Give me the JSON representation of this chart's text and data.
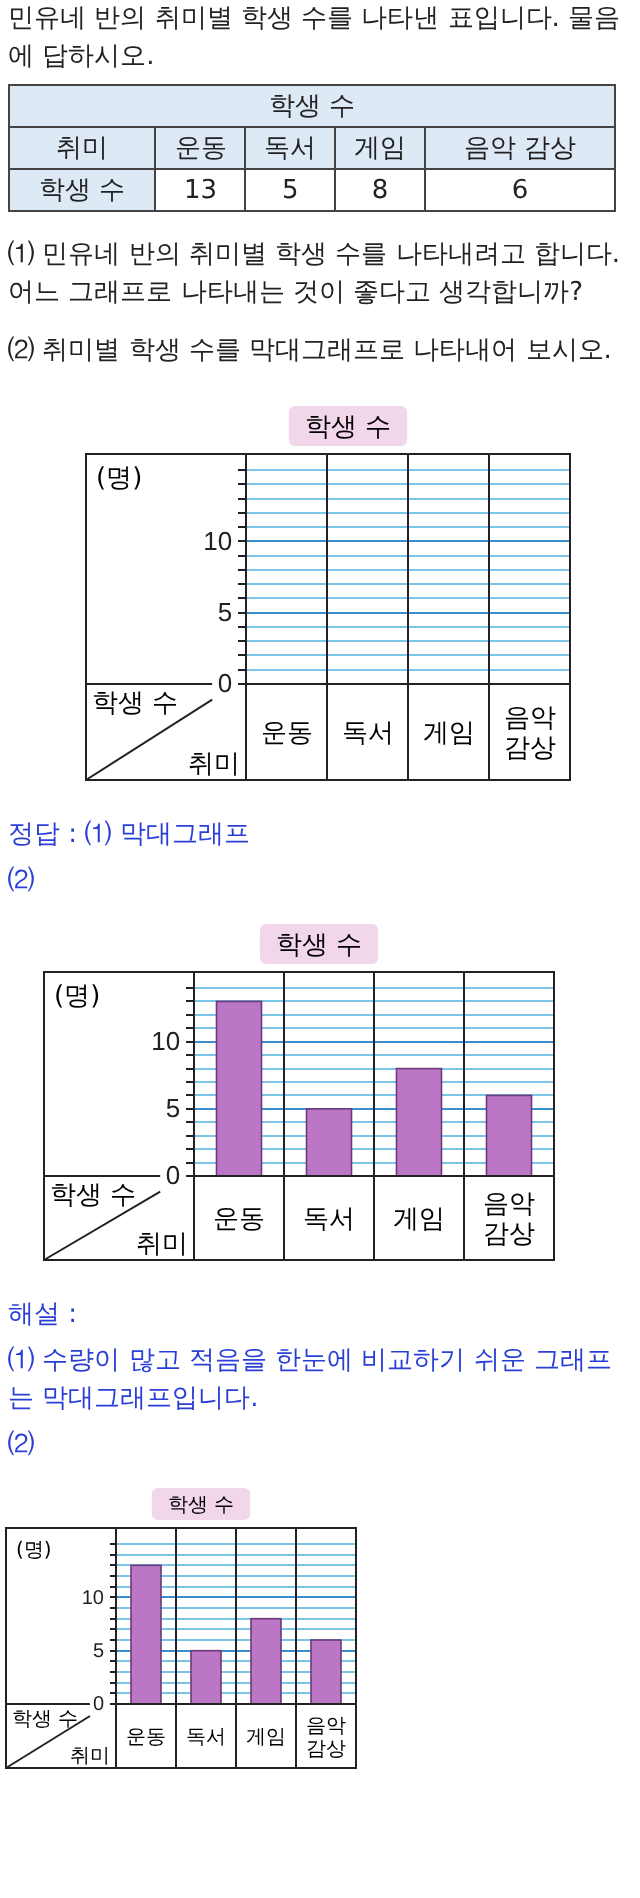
{
  "chart_data": [
    {
      "type": "other",
      "annotations": [
        "민유네 반의 취미별 학생 수를 나타낸 표입니다. 물음에 답하시오.",
        "⑴ 민유네 반의 취미별 학생 수를 나타내려고 합니다. 어느 그래프로 나타내는 것이 좋다고 생각합니까?",
        "⑵ 취미별 학생 수를 막대그래프로 나타내어 보시오."
      ],
      "title": "학생 수",
      "xlabel": "취미",
      "ylabel": "학생 수",
      "categories": [
        "운동",
        "독서",
        "게임",
        "음악 감상"
      ],
      "values": [
        13,
        5,
        8,
        6
      ],
      "data_labels": true
    },
    {
      "type": "bar",
      "title": "학생 수",
      "ylabel": "(명)",
      "xlabel": "취미",
      "annotations": [
        "학생 수"
      ],
      "categories": [
        "운동",
        "독서",
        "게임",
        "음악\n감상"
      ],
      "values": [
        null,
        null,
        null,
        null
      ],
      "ylim": [
        0,
        15
      ],
      "yticks": [
        0,
        {
          "value": 1,
          "label": null
        },
        {
          "value": 2,
          "label": null
        },
        {
          "value": 3,
          "label": null
        },
        {
          "value": 4,
          "label": null
        },
        5,
        {
          "value": 6,
          "label": null
        },
        {
          "value": 7,
          "label": null
        },
        {
          "value": 8,
          "label": null
        },
        {
          "value": 9,
          "label": null
        },
        10,
        {
          "value": 11,
          "label": null
        },
        {
          "value": 12,
          "label": null
        },
        {
          "value": 13,
          "label": null
        },
        {
          "value": 14,
          "label": null
        },
        {
          "value": 15,
          "label": null
        }
      ],
      "grid": "y"
    },
    {
      "type": "bar",
      "title": "학생 수",
      "ylabel": "(명)",
      "xlabel": "취미",
      "annotations": [
        "정답 : ⑴ 막대그래프",
        "⑵",
        "학생 수"
      ],
      "categories": [
        "운동",
        "독서",
        "게임",
        "음악\n감상"
      ],
      "values": [
        13,
        5,
        8,
        6
      ],
      "color": "#bb77c6",
      "ylim": [
        0,
        14
      ],
      "yticks": [
        0,
        {
          "value": 1,
          "label": null
        },
        {
          "value": 2,
          "label": null
        },
        {
          "value": 3,
          "label": null
        },
        {
          "value": 4,
          "label": null
        },
        5,
        {
          "value": 6,
          "label": null
        },
        {
          "value": 7,
          "label": null
        },
        {
          "value": 8,
          "label": null
        },
        {
          "value": 9,
          "label": null
        },
        10,
        {
          "value": 11,
          "label": null
        },
        {
          "value": 12,
          "label": null
        },
        {
          "value": 13,
          "label": null
        },
        {
          "value": 14,
          "label": null
        }
      ],
      "grid": "y"
    },
    {
      "type": "bar",
      "title": "학생 수",
      "ylabel": "(명)",
      "xlabel": "취미",
      "annotations": [
        "해설 :",
        "⑴ 수량이 많고 적음을 한눈에 비교하기 쉬운 그래프는 막대그래프입니다.",
        "⑵",
        "학생 수"
      ],
      "categories": [
        "운동",
        "독서",
        "게임",
        "음악\n감상"
      ],
      "values": [
        13,
        5,
        8,
        6
      ],
      "color": "#bb77c6",
      "ylim": [
        0,
        15
      ],
      "yticks": [
        0,
        {
          "value": 1,
          "label": null
        },
        {
          "value": 2,
          "label": null
        },
        {
          "value": 3,
          "label": null
        },
        {
          "value": 4,
          "label": null
        },
        5,
        {
          "value": 6,
          "label": null
        },
        {
          "value": 7,
          "label": null
        },
        {
          "value": 8,
          "label": null
        },
        {
          "value": 9,
          "label": null
        },
        10,
        {
          "value": 11,
          "label": null
        },
        {
          "value": 12,
          "label": null
        },
        {
          "value": 13,
          "label": null
        },
        {
          "value": 14,
          "label": null
        },
        {
          "value": 15,
          "label": null
        }
      ],
      "grid": "y"
    }
  ]
}
